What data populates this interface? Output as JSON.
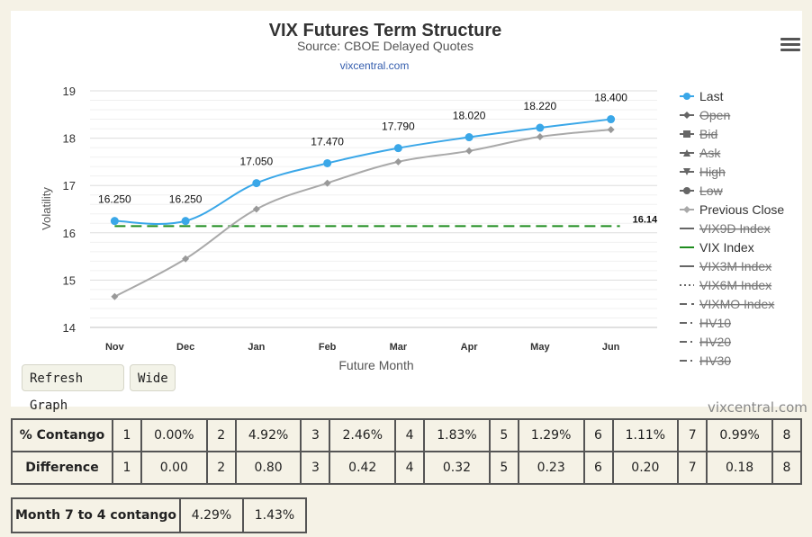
{
  "chart_data": {
    "type": "line",
    "title": "VIX Futures Term Structure",
    "subtitle": "Source: CBOE Delayed Quotes",
    "source_link": "vixcentral.com",
    "credit": "vixcentral.com",
    "xlabel": "Future Month",
    "ylabel": "Volatility",
    "categories": [
      "Nov",
      "Dec",
      "Jan",
      "Feb",
      "Mar",
      "Apr",
      "May",
      "Jun"
    ],
    "ylim": [
      14,
      19
    ],
    "yticks": [
      14,
      15,
      16,
      17,
      18,
      19
    ],
    "grid": true,
    "legend_position": "right",
    "series": [
      {
        "name": "Last",
        "values": [
          16.25,
          16.25,
          17.05,
          17.47,
          17.79,
          18.02,
          18.22,
          18.4
        ],
        "labels": [
          "16.250",
          "16.250",
          "17.050",
          "17.470",
          "17.790",
          "18.020",
          "18.220",
          "18.400"
        ],
        "color": "#3aa7e8",
        "marker": "circle"
      },
      {
        "name": "Previous Close",
        "values": [
          14.65,
          15.45,
          16.5,
          17.05,
          17.5,
          17.73,
          18.03,
          18.18
        ],
        "color": "#a9a9a9",
        "marker": "diamond"
      },
      {
        "name": "VIX Index",
        "value": 16.14,
        "label": "16.14",
        "color": "#1e8c1e",
        "style": "dashed"
      }
    ],
    "legend": [
      {
        "name": "Last",
        "active": true,
        "symbol": "circle",
        "line": "solid",
        "color": "#3aa7e8"
      },
      {
        "name": "Open",
        "active": false,
        "symbol": "diamond",
        "line": "solid",
        "color": "#666666"
      },
      {
        "name": "Bid",
        "active": false,
        "symbol": "square",
        "line": "solid",
        "color": "#666666"
      },
      {
        "name": "Ask",
        "active": false,
        "symbol": "triangle",
        "line": "solid",
        "color": "#666666"
      },
      {
        "name": "High",
        "active": false,
        "symbol": "triangle-down",
        "line": "solid",
        "color": "#666666"
      },
      {
        "name": "Low",
        "active": false,
        "symbol": "circle",
        "line": "solid",
        "color": "#666666"
      },
      {
        "name": "Previous Close",
        "active": true,
        "symbol": "diamond",
        "line": "solid",
        "color": "#a9a9a9"
      },
      {
        "name": "VIX9D Index",
        "active": false,
        "symbol": "none",
        "line": "solid",
        "color": "#666666"
      },
      {
        "name": "VIX Index",
        "active": true,
        "symbol": "none",
        "line": "solid",
        "color": "#1e8c1e"
      },
      {
        "name": "VIX3M Index",
        "active": false,
        "symbol": "none",
        "line": "solid",
        "color": "#666666"
      },
      {
        "name": "VIX6M Index",
        "active": false,
        "symbol": "none",
        "line": "dotted",
        "color": "#666666"
      },
      {
        "name": "VIXMO Index",
        "active": false,
        "symbol": "none",
        "line": "dashed",
        "color": "#666666"
      },
      {
        "name": "HV10",
        "active": false,
        "symbol": "none",
        "line": "dashdot",
        "color": "#666666"
      },
      {
        "name": "HV20",
        "active": false,
        "symbol": "none",
        "line": "dashdot",
        "color": "#666666"
      },
      {
        "name": "HV30",
        "active": false,
        "symbol": "none",
        "line": "dashdot",
        "color": "#666666"
      }
    ]
  },
  "buttons": {
    "refresh": "Refresh Graph",
    "wide": "Wide"
  },
  "tables": {
    "contango": {
      "label": "% Contango",
      "cells": [
        {
          "month": "1",
          "value": "0.00%"
        },
        {
          "month": "2",
          "value": "4.92%"
        },
        {
          "month": "3",
          "value": "2.46%"
        },
        {
          "month": "4",
          "value": "1.83%"
        },
        {
          "month": "5",
          "value": "1.29%"
        },
        {
          "month": "6",
          "value": "1.11%"
        },
        {
          "month": "7",
          "value": "0.99%"
        },
        {
          "month": "8",
          "value": ""
        }
      ]
    },
    "difference": {
      "label": "Difference",
      "cells": [
        {
          "month": "1",
          "value": "0.00"
        },
        {
          "month": "2",
          "value": "0.80"
        },
        {
          "month": "3",
          "value": "0.42"
        },
        {
          "month": "4",
          "value": "0.32"
        },
        {
          "month": "5",
          "value": "0.23"
        },
        {
          "month": "6",
          "value": "0.20"
        },
        {
          "month": "7",
          "value": "0.18"
        },
        {
          "month": "8",
          "value": ""
        }
      ]
    },
    "month_contango": {
      "label": "Month 7 to 4 contango",
      "value1": "4.29%",
      "value2": "1.43%"
    }
  }
}
